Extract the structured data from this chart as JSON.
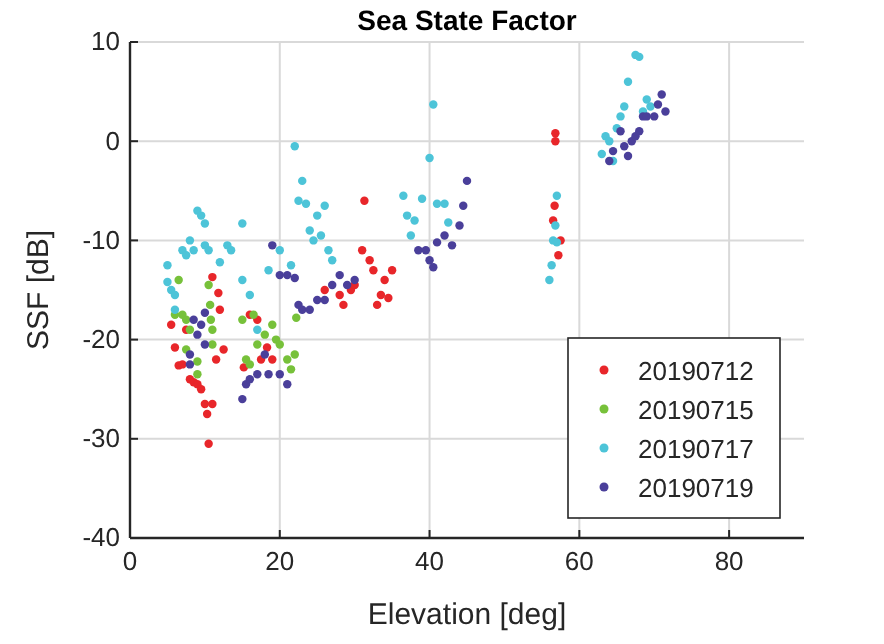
{
  "chart_data": {
    "type": "scatter",
    "title": "Sea State Factor",
    "xlabel": "Elevation [deg]",
    "ylabel": "SSF [dB]",
    "xlim": [
      0,
      90
    ],
    "xticks": [
      0,
      20,
      40,
      60,
      80
    ],
    "ylim": [
      -40,
      10
    ],
    "yticks": [
      -40,
      -30,
      -20,
      -10,
      0,
      10
    ],
    "grid": true,
    "legend": "bottom right",
    "marker": "circle",
    "series": [
      {
        "name": "20190712",
        "color": "#e8262a",
        "x": [
          5.5,
          6,
          6.5,
          7,
          7.5,
          8,
          8.5,
          9,
          9.5,
          10,
          10.3,
          10.5,
          11,
          11.5,
          11,
          11.8,
          12,
          12.5,
          15.2,
          16,
          17,
          17.5,
          18.3,
          19,
          26,
          28,
          28.5,
          29.5,
          30,
          31,
          31.3,
          32,
          32.5,
          33,
          33.5,
          34,
          35,
          34.5,
          56.8,
          56.8,
          56.7,
          56.5,
          57.5,
          57.2
        ],
        "values": [
          -18.5,
          -20.8,
          -22.6,
          -22.5,
          -19,
          -24,
          -24.3,
          -24.5,
          -25,
          -26.5,
          -27.5,
          -30.5,
          -26.5,
          -22,
          -13.7,
          -15.3,
          -17,
          -21,
          -22.8,
          -17.5,
          -18,
          -22,
          -20.8,
          -22,
          -15,
          -15.5,
          -16.5,
          -15,
          -14.5,
          -11,
          -6,
          -12,
          -13,
          -16.5,
          -15.5,
          -14,
          -13,
          -15.8,
          0.8,
          0,
          -6.5,
          -8,
          -10,
          -11.5
        ]
      },
      {
        "name": "20190715",
        "color": "#77c13a",
        "x": [
          6,
          6.5,
          7,
          7.5,
          8,
          7.5,
          9,
          9,
          10.5,
          10.7,
          10.8,
          11,
          11,
          15,
          15.5,
          16,
          16.5,
          17,
          18,
          19,
          19.5,
          20,
          21,
          21.5,
          22,
          22.2
        ],
        "values": [
          -17.5,
          -14,
          -17.5,
          -18,
          -19,
          -21,
          -22.2,
          -23.5,
          -14.5,
          -16.5,
          -18,
          -19,
          -20.5,
          -18,
          -22,
          -22.5,
          -17.5,
          -20.5,
          -19.5,
          -18.5,
          -20,
          -20.5,
          -22,
          -23,
          -21.5,
          -17.8
        ]
      },
      {
        "name": "20190717",
        "color": "#4dc4d8",
        "x": [
          5,
          5,
          5.5,
          6,
          6,
          7,
          7.5,
          8,
          8.5,
          9,
          9.5,
          10,
          10,
          10.5,
          12,
          13,
          13.5,
          15,
          15,
          16,
          17,
          18.5,
          20,
          21.5,
          22,
          22.5,
          23,
          23.5,
          24,
          24.5,
          25,
          25.5,
          26,
          26.5,
          27,
          36.5,
          37,
          37.5,
          38,
          39,
          40,
          40.5,
          41,
          42,
          42.5,
          56,
          56.3,
          56.5,
          56.8,
          57,
          57,
          63,
          63.5,
          64,
          64.5,
          65,
          65.5,
          66,
          66.5,
          67.5,
          68,
          68.5,
          69,
          69.5
        ],
        "values": [
          -12.5,
          -14.2,
          -15,
          -15.5,
          -17,
          -11,
          -11.5,
          -10,
          -11,
          -7,
          -7.5,
          -10.5,
          -8.3,
          -11,
          -12.2,
          -10.5,
          -11,
          -8.3,
          -14,
          -15.5,
          -19,
          -13,
          -11,
          -12.5,
          -0.5,
          -6,
          -4,
          -6.3,
          -9,
          -10,
          -7.5,
          -9.5,
          -6.5,
          -11,
          -12,
          -5.5,
          -7.5,
          -9.5,
          -8,
          -5.8,
          -1.7,
          3.7,
          -6.3,
          -6.3,
          -8.2,
          -14,
          -12.5,
          -10,
          -8.5,
          -5.5,
          -10.2,
          -1.3,
          0.5,
          0,
          -2,
          1.3,
          2.5,
          3.5,
          6,
          8.7,
          8.5,
          3,
          4.2,
          3.5
        ]
      },
      {
        "name": "20190719",
        "color": "#4a3f9a",
        "x": [
          8,
          8.5,
          9,
          9.5,
          10,
          10,
          8,
          15,
          15.5,
          16,
          17,
          18,
          18.5,
          19,
          20,
          21,
          20,
          21,
          22,
          22.5,
          23,
          24,
          25,
          26,
          27,
          28,
          29,
          30,
          38.5,
          39.5,
          40,
          40.5,
          41,
          42,
          43,
          44,
          44.5,
          45,
          64,
          64.5,
          65.5,
          66,
          66.5,
          67,
          67.5,
          68,
          68.5,
          69,
          70,
          70.5,
          71,
          71.5
        ],
        "values": [
          -21.5,
          -18,
          -19.5,
          -18.5,
          -17.3,
          -20.5,
          -22.5,
          -26,
          -24.5,
          -24,
          -23.5,
          -21.5,
          -23.5,
          -10.5,
          -23.5,
          -24.5,
          -13.5,
          -13.5,
          -13.8,
          -16.5,
          -17,
          -17,
          -16,
          -16,
          -14.5,
          -13.5,
          -14.5,
          -14,
          -11,
          -11,
          -12,
          -12.7,
          -10.2,
          -9.5,
          -10.5,
          -8.5,
          -6.5,
          -4,
          -2,
          -1,
          1,
          -0.5,
          -1.5,
          0,
          0.5,
          1,
          2.5,
          2.5,
          2.5,
          3.7,
          4.7,
          3
        ]
      }
    ]
  }
}
